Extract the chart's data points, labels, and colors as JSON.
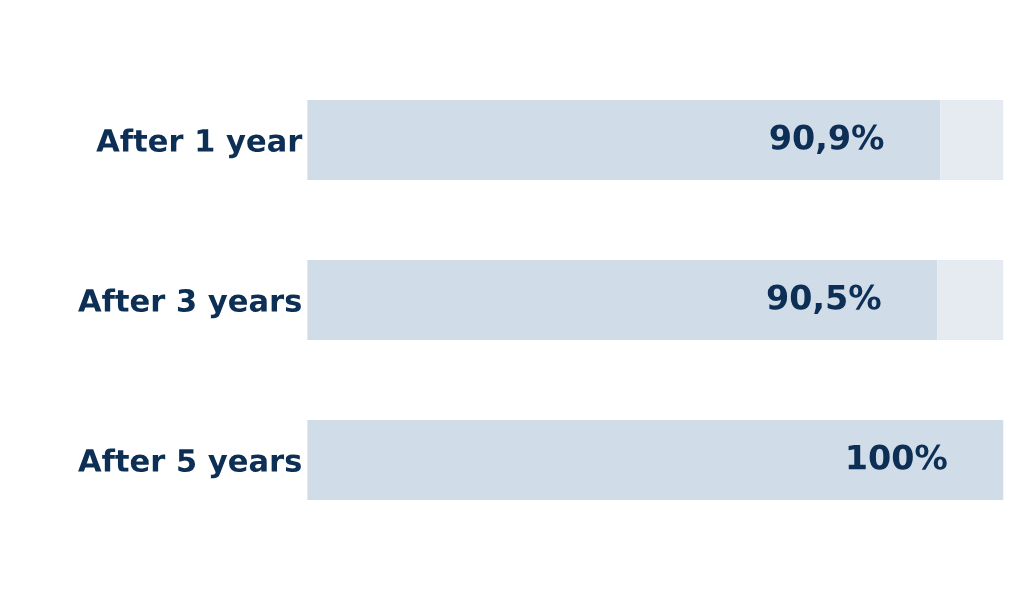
{
  "chart_data": {
    "type": "bar",
    "orientation": "horizontal",
    "categories": [
      "After 1 year",
      "After 3 years",
      "After 5 years"
    ],
    "series": [
      {
        "color": "#d0dde9",
        "values": [
          90.9,
          90.5,
          100
        ],
        "value_labels": [
          "90,9%",
          "90,5%",
          "100%"
        ]
      },
      {
        "color": "#e6ebf1",
        "values": [
          9.1,
          9.5,
          null
        ]
      }
    ],
    "stacked": true,
    "xlim": [
      0,
      100
    ],
    "tick_labels": "y",
    "grid": false,
    "legend": false
  }
}
